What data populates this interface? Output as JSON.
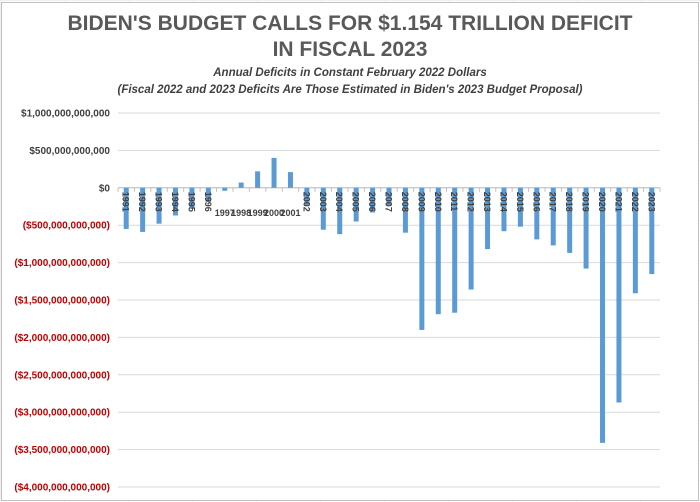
{
  "chart_data": {
    "type": "bar",
    "title_lines": [
      "BIDEN'S BUDGET CALLS FOR $1.154 TRILLION DEFICIT",
      "IN FISCAL 2023"
    ],
    "subtitle_lines": [
      "Annual Deficits in Constant February 2022 Dollars",
      "(Fiscal 2022 and 2023 Deficits Are Those Estimated in Biden's 2023 Budget Proposal)"
    ],
    "xlabel": "",
    "ylabel": "",
    "categories": [
      "1991",
      "1992",
      "1993",
      "1994",
      "1995",
      "1996",
      "1997",
      "1998",
      "1999",
      "2000",
      "2001",
      "2002",
      "2003",
      "2004",
      "2005",
      "2006",
      "2007",
      "2008",
      "2009",
      "2010",
      "2011",
      "2012",
      "2013",
      "2014",
      "2015",
      "2016",
      "2017",
      "2018",
      "2019",
      "2020",
      "2021",
      "2022",
      "2023"
    ],
    "values": [
      -550000000000,
      -590000000000,
      -480000000000,
      -370000000000,
      -280000000000,
      -190000000000,
      -40000000000,
      70000000000,
      220000000000,
      400000000000,
      210000000000,
      -230000000000,
      -560000000000,
      -620000000000,
      -450000000000,
      -330000000000,
      -230000000000,
      -600000000000,
      -1900000000000,
      -1690000000000,
      -1670000000000,
      -1360000000000,
      -820000000000,
      -580000000000,
      -520000000000,
      -690000000000,
      -770000000000,
      -870000000000,
      -1080000000000,
      -3410000000000,
      -2870000000000,
      -1410000000000,
      -1154000000000
    ],
    "ylim": [
      -4000000000000,
      1000000000000
    ],
    "yticks": [
      1000000000000,
      500000000000,
      0,
      -500000000000,
      -1000000000000,
      -1500000000000,
      -2000000000000,
      -2500000000000,
      -3000000000000,
      -3500000000000,
      -4000000000000
    ],
    "ytick_labels": [
      "$1,000,000,000,000",
      "$500,000,000,000",
      "$0",
      "($500,000,000,000)",
      "($1,000,000,000,000)",
      "($1,500,000,000,000)",
      "($2,000,000,000,000)",
      "($2,500,000,000,000)",
      "($3,000,000,000,000)",
      "($3,500,000,000,000)",
      "($4,000,000,000,000)"
    ],
    "grid": true,
    "legend": "none",
    "colors": {
      "bar": "#5b9bd5",
      "negative_tick": "#c00000",
      "positive_tick": "#404040",
      "grid": "#d9d9d9",
      "title": "#595959"
    }
  }
}
